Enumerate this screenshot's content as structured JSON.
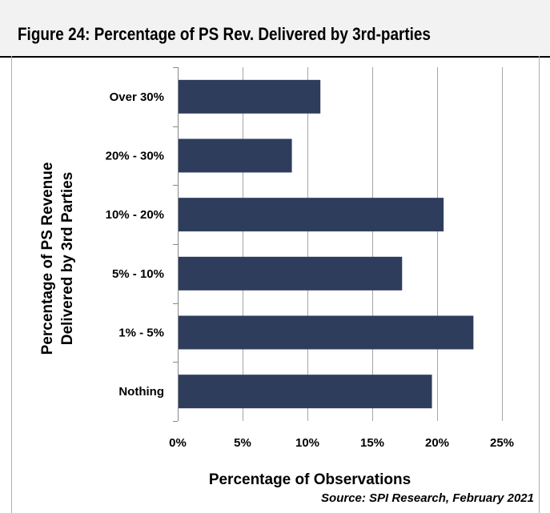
{
  "chart_data": {
    "type": "bar",
    "orientation": "horizontal",
    "title": "Figure 24:  Percentage of PS Rev. Delivered by 3rd-parties",
    "categories": [
      "Over 30%",
      "20% - 30%",
      "10% - 20%",
      "5% - 10%",
      "1% - 5%",
      "Nothing"
    ],
    "values": [
      11.0,
      8.8,
      20.5,
      17.3,
      22.8,
      19.6
    ],
    "xlabel": "Percentage of Observations",
    "ylabel_lines": [
      "Percentage of PS Revenue",
      "Delivered by 3rd Parties"
    ],
    "xlim": [
      0,
      25
    ],
    "xticks": [
      "0%",
      "5%",
      "10%",
      "15%",
      "20%",
      "25%"
    ],
    "xtick_values": [
      0,
      5,
      10,
      15,
      20,
      25
    ],
    "grid": true,
    "bar_color": "#2e3d5c",
    "source": "Source: SPI Research, February 2021"
  }
}
